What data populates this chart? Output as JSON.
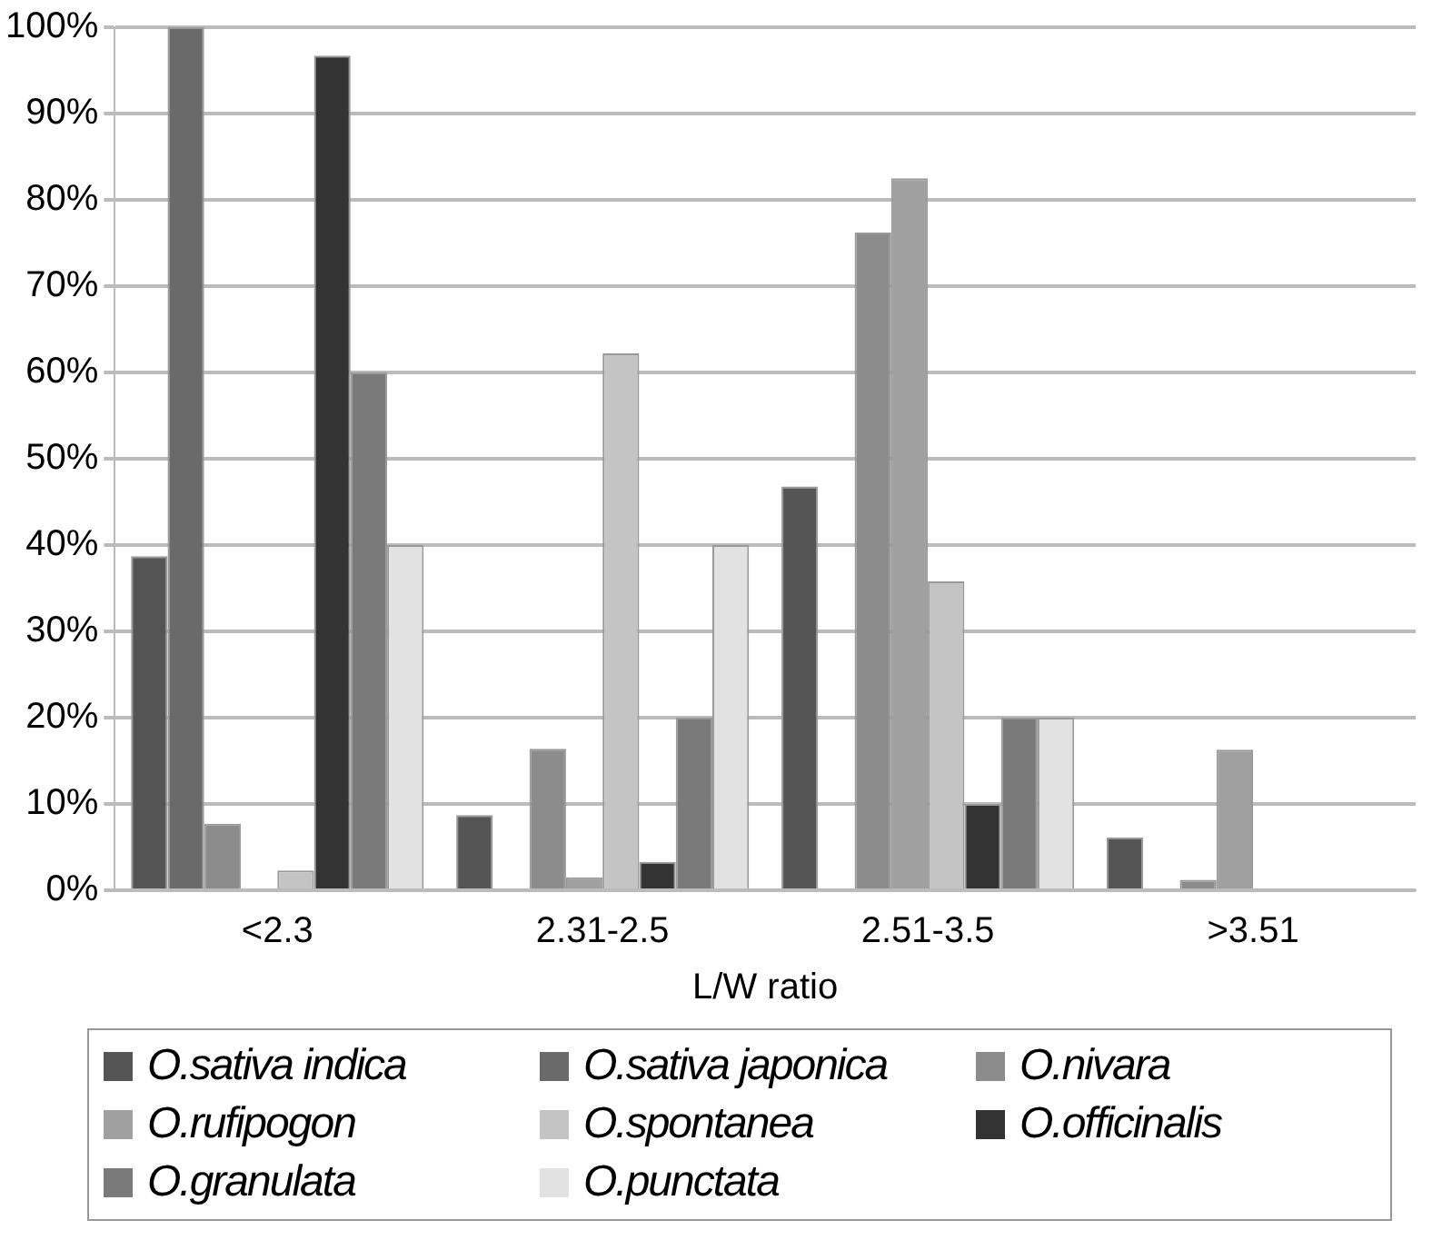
{
  "chart_data": {
    "type": "bar",
    "xlabel": "L/W ratio",
    "categories": [
      "<2.3",
      "2.31-2.5",
      "2.51-3.5",
      ">3.51"
    ],
    "series": [
      {
        "name": "O.sativa indica",
        "color": "#555555",
        "values": [
          38.7,
          8.7,
          46.8,
          6.1
        ]
      },
      {
        "name": "O.sativa japonica",
        "color": "#6a6a6a",
        "values": [
          100,
          0,
          0,
          0
        ]
      },
      {
        "name": "O.nivara",
        "color": "#8c8c8c",
        "values": [
          7.7,
          16.4,
          76.2,
          1.2
        ]
      },
      {
        "name": "O.rufipogon",
        "color": "#a0a0a0",
        "values": [
          0,
          1.5,
          82.5,
          16.3
        ]
      },
      {
        "name": "O.spontanea",
        "color": "#c4c4c4",
        "values": [
          2.3,
          62.2,
          35.8,
          0
        ]
      },
      {
        "name": "O.officinalis",
        "color": "#333333",
        "values": [
          96.7,
          3.3,
          10,
          0
        ]
      },
      {
        "name": "O.granulata",
        "color": "#7a7a7a",
        "values": [
          60,
          20,
          20,
          0
        ]
      },
      {
        "name": "O.punctata",
        "color": "#e2e2e2",
        "values": [
          40,
          40,
          20,
          0
        ]
      }
    ],
    "ylim": [
      0,
      100
    ],
    "yticks": [
      {
        "value": 0,
        "label": "0%"
      },
      {
        "value": 10,
        "label": "10%"
      },
      {
        "value": 20,
        "label": "20%"
      },
      {
        "value": 30,
        "label": "30%"
      },
      {
        "value": 40,
        "label": "40%"
      },
      {
        "value": 50,
        "label": "50%"
      },
      {
        "value": 60,
        "label": "60%"
      },
      {
        "value": 70,
        "label": "70%"
      },
      {
        "value": 80,
        "label": "80%"
      },
      {
        "value": 90,
        "label": "90%"
      },
      {
        "value": 100,
        "label": "100%"
      }
    ],
    "grid": "y",
    "legend": "bottom"
  }
}
